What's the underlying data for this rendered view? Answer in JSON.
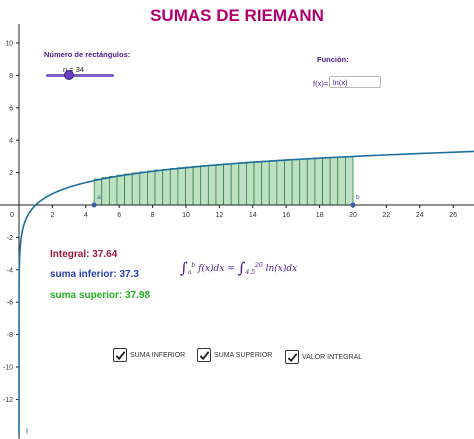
{
  "title": "SUMAS DE RIEMANN",
  "slider": {
    "label": "Número de rectángulos:",
    "value_text": "n = 34",
    "value": 34
  },
  "function": {
    "label": "Función:",
    "prefix": "f(x)=",
    "input_value": "ln(x)"
  },
  "results": {
    "integral": "Integral: 37.64",
    "inferior": "suma inferior: 37.3",
    "superior": "suma superior: 37.98"
  },
  "formula": {
    "left_int_lower": "a",
    "left_int_upper": "b",
    "left_integrand": "f(x)dx =",
    "right_int_lower": "4.5",
    "right_int_upper": "20",
    "right_integrand": "ln(x)dx"
  },
  "checkboxes": [
    {
      "label": "SUMA INFERIOR",
      "checked": true
    },
    {
      "label": "SUMA SUPERIOR",
      "checked": true
    },
    {
      "label": "VALOR INTEGRAL",
      "checked": true
    }
  ],
  "graph": {
    "x_ticks": [
      "2",
      "4",
      "6",
      "8",
      "10",
      "12",
      "14",
      "16",
      "18",
      "20",
      "22",
      "24",
      "26"
    ],
    "y_ticks": [
      "10",
      "8",
      "6",
      "4",
      "2",
      "-2",
      "-4",
      "-6",
      "-8",
      "-10",
      "-12"
    ],
    "origin_label": "0",
    "point_a_label": "a",
    "point_b_label": "b",
    "curve_label": "f",
    "a": 4.5,
    "b": 20,
    "n": 34,
    "colors": {
      "curve": "#1f6f9e",
      "rect_fill": "#bfe0c4",
      "rect_stroke": "#2e8b3e",
      "points": "#3a5ba0"
    }
  }
}
